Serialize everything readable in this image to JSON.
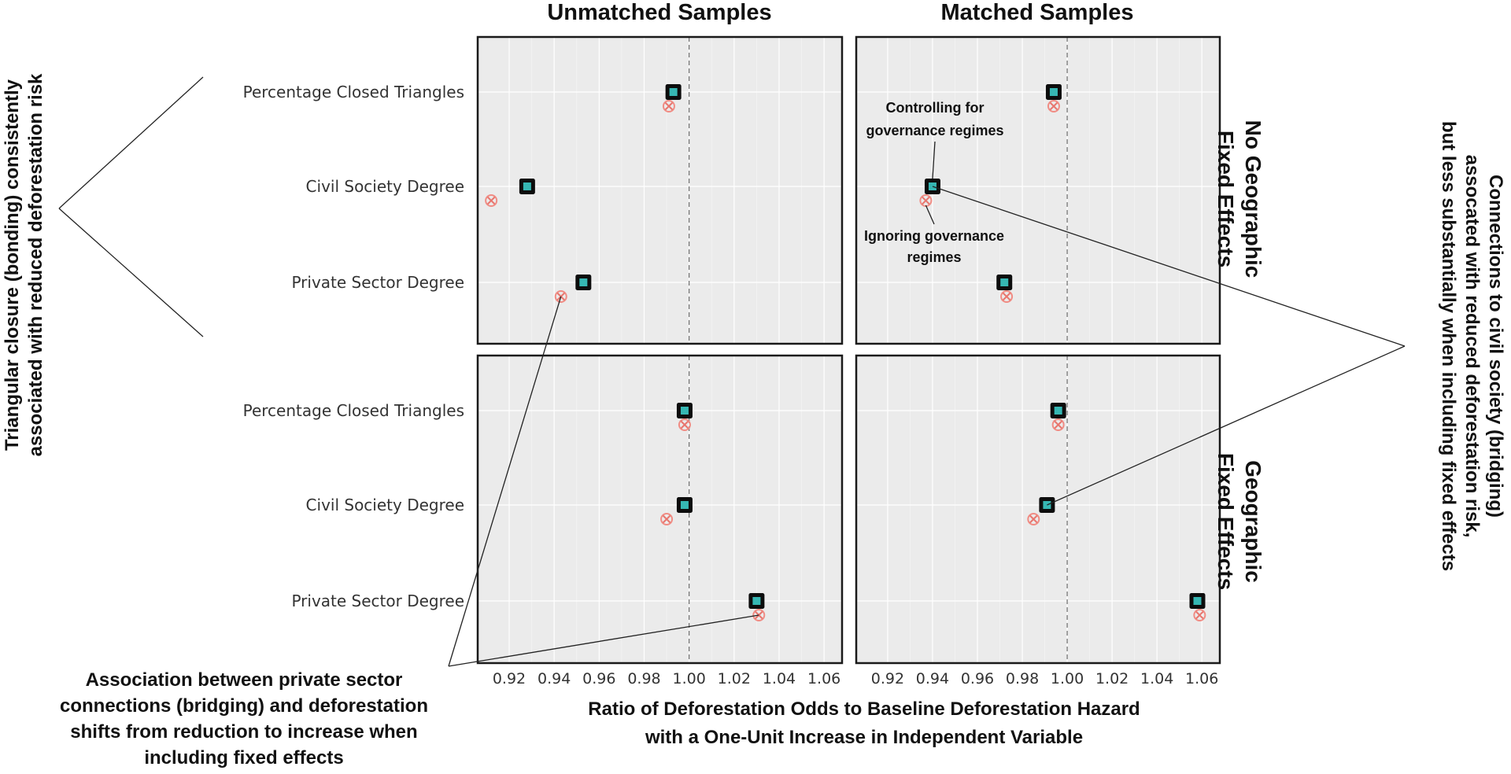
{
  "chart_data": {
    "type": "scatter",
    "columns": [
      "Unmatched Samples",
      "Matched Samples"
    ],
    "rows": [
      "No Geographic Fixed Effects",
      "Geographic Fixed Effects"
    ],
    "categories": [
      "Percentage Closed Triangles",
      "Civil Society Degree",
      "Private Sector Degree"
    ],
    "xlabel": "Ratio of Deforestation Odds to Baseline Deforestation Hazard with a One-Unit Increase in Independent Variable",
    "xlabel_lines": [
      "Ratio of Deforestation Odds to Baseline Deforestation Hazard",
      "with a One-Unit Increase in Independent Variable"
    ],
    "xticks": [
      "0.92",
      "0.94",
      "0.96",
      "0.98",
      "1.00",
      "1.02",
      "1.04",
      "1.06"
    ],
    "xtick_values": [
      0.92,
      0.94,
      0.96,
      0.98,
      1.0,
      1.02,
      1.04,
      1.06
    ],
    "xlim": [
      0.906,
      1.068
    ],
    "reference_line": 1.0,
    "grid": true,
    "series": [
      {
        "label": "Controlling for governance regimes",
        "marker": "square",
        "color": "#36b7b3",
        "panels": [
          {
            "row": 0,
            "col": 0,
            "values": [
              0.993,
              0.928,
              0.953
            ]
          },
          {
            "row": 0,
            "col": 1,
            "values": [
              0.994,
              0.94,
              0.972
            ]
          },
          {
            "row": 1,
            "col": 0,
            "values": [
              0.998,
              0.998,
              1.03
            ]
          },
          {
            "row": 1,
            "col": 1,
            "values": [
              0.996,
              0.991,
              1.058
            ]
          }
        ]
      },
      {
        "label": "Ignoring governance regimes",
        "marker": "circle-x",
        "color": "#f08c84",
        "panels": [
          {
            "row": 0,
            "col": 0,
            "values": [
              0.991,
              0.912,
              0.943
            ]
          },
          {
            "row": 0,
            "col": 1,
            "values": [
              0.994,
              0.937,
              0.973
            ]
          },
          {
            "row": 1,
            "col": 0,
            "values": [
              0.998,
              0.99,
              1.031
            ]
          },
          {
            "row": 1,
            "col": 1,
            "values": [
              0.996,
              0.985,
              1.059
            ]
          }
        ]
      }
    ]
  },
  "col_titles": [
    "Unmatched Samples",
    "Matched Samples"
  ],
  "row_strips": [
    [
      "No Geographic",
      "Fixed Effects"
    ],
    [
      "Geographic",
      "Fixed Effects"
    ]
  ],
  "annotations": {
    "gov_label": [
      "Controlling for",
      "governance regimes"
    ],
    "nogov_label": [
      "Ignoring governance",
      "regimes"
    ],
    "left": [
      "Triangular closure (bonding) consistently",
      "associated with reduced deforestation risk"
    ],
    "right": [
      "Connections to civil society (bridging)",
      "assocated with reduced deforestation risk,",
      "but less substantially when including fixed effects"
    ],
    "bottom": [
      "Association between private sector",
      "connections (bridging) and deforestation",
      "shifts from reduction to increase when",
      "including fixed effects"
    ]
  }
}
